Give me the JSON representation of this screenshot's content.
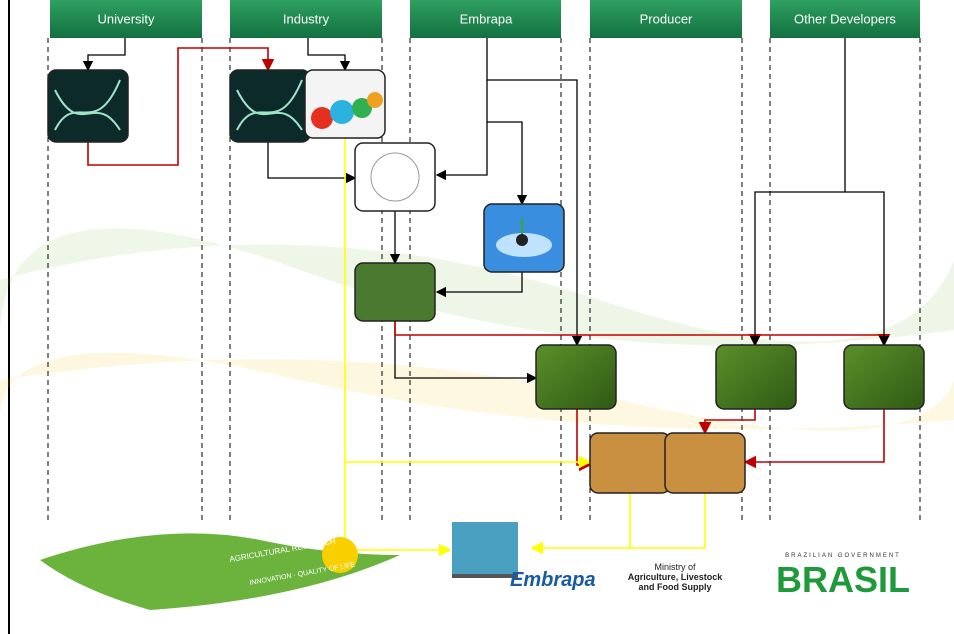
{
  "columns": [
    {
      "label": "University"
    },
    {
      "label": "Industry"
    },
    {
      "label": "Embrapa"
    },
    {
      "label": "Producer"
    },
    {
      "label": "Other Developers"
    }
  ],
  "footer": {
    "banner_top": "AGRICULTURAL RESEARCH",
    "banner_bottom": "INNOVATION · QUALITY OF LIFE",
    "embrapa": "Embrapa",
    "ministry": [
      "Ministry of",
      "Agriculture, Livestock",
      "and Food Supply"
    ],
    "government": "BRAZILIAN GOVERNMENT",
    "brasil": "BRASIL"
  }
}
